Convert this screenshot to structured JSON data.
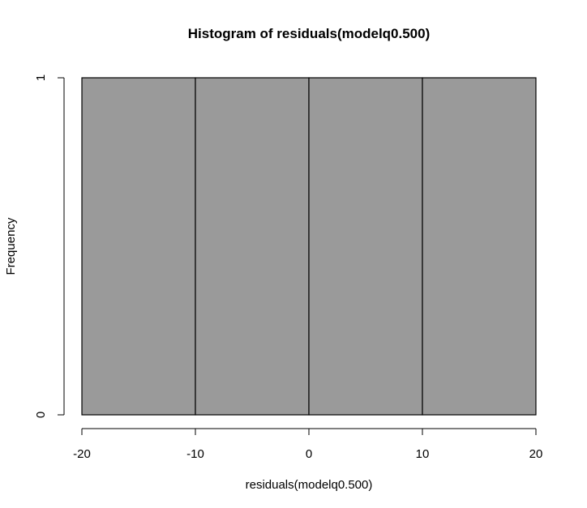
{
  "chart_data": {
    "type": "bar",
    "title": "Histogram of residuals(modelq0.500)",
    "xlabel": "residuals(modelq0.500)",
    "ylabel": "Frequency",
    "bins": [
      {
        "start": -20,
        "end": -10,
        "count": 1
      },
      {
        "start": -10,
        "end": 0,
        "count": 1
      },
      {
        "start": 0,
        "end": 10,
        "count": 1
      },
      {
        "start": 10,
        "end": 20,
        "count": 1
      }
    ],
    "xlim": [
      -20,
      20
    ],
    "ylim": [
      0,
      1
    ],
    "x_ticks": [
      "-20",
      "-10",
      "0",
      "10",
      "20"
    ],
    "y_ticks": [
      "0",
      "1"
    ],
    "bar_color": "#9a9a9a",
    "grid": false
  }
}
